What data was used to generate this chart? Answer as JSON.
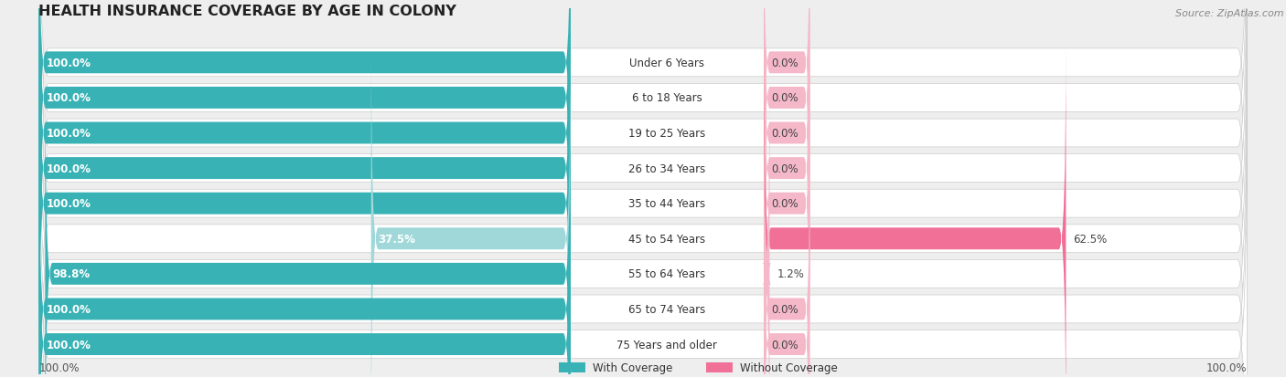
{
  "title": "HEALTH INSURANCE COVERAGE BY AGE IN COLONY",
  "source": "Source: ZipAtlas.com",
  "categories": [
    "Under 6 Years",
    "6 to 18 Years",
    "19 to 25 Years",
    "26 to 34 Years",
    "35 to 44 Years",
    "45 to 54 Years",
    "55 to 64 Years",
    "65 to 74 Years",
    "75 Years and older"
  ],
  "with_coverage": [
    100.0,
    100.0,
    100.0,
    100.0,
    100.0,
    37.5,
    98.8,
    100.0,
    100.0
  ],
  "without_coverage": [
    0.0,
    0.0,
    0.0,
    0.0,
    0.0,
    62.5,
    1.2,
    0.0,
    0.0
  ],
  "color_with": "#38b2b5",
  "color_with_light": "#a0d8d9",
  "color_without": "#f07098",
  "color_without_light": "#f4b8c8",
  "bg_color": "#eeeeee",
  "title_fontsize": 11.5,
  "label_fontsize": 8.5,
  "value_fontsize": 8.5,
  "source_fontsize": 8,
  "legend_fontsize": 8.5
}
